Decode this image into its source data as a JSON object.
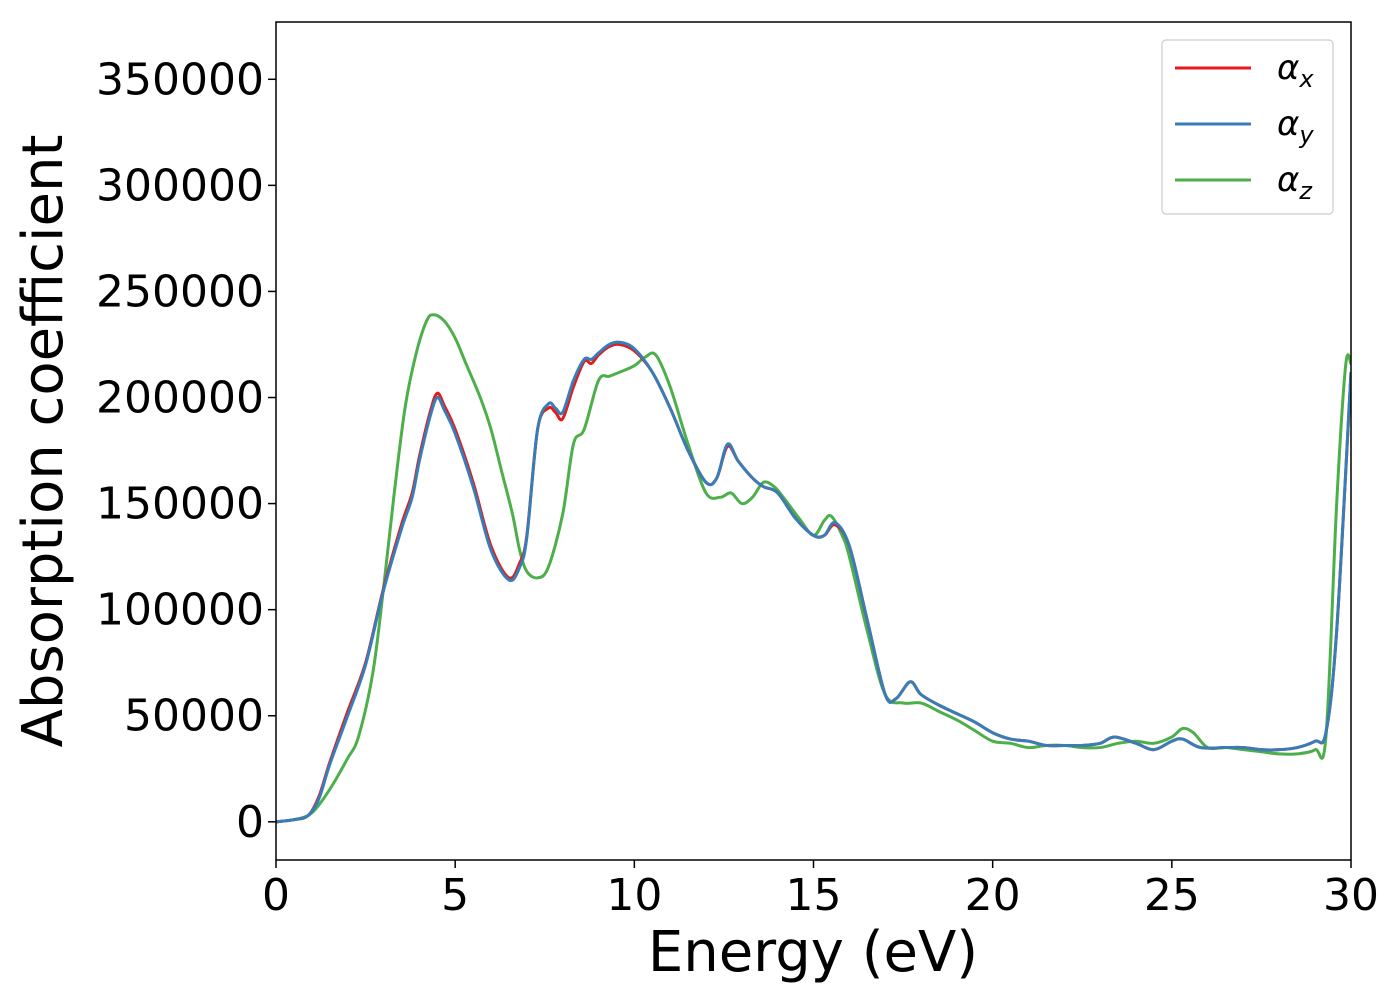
{
  "chart_data": {
    "type": "line",
    "title": "",
    "xlabel": "Energy (eV)",
    "ylabel": "Absorption coefficient",
    "xlim": [
      0,
      30
    ],
    "ylim": [
      -18000,
      377000
    ],
    "xticks": [
      0,
      5,
      10,
      15,
      20,
      25,
      30
    ],
    "yticks": [
      0,
      50000,
      100000,
      150000,
      200000,
      250000,
      300000,
      350000
    ],
    "grid": false,
    "legend_position": "top-right",
    "series": [
      {
        "name": "α_x",
        "legend_symbol": "α",
        "legend_subscript": "x",
        "color": "#e41a1c",
        "x": [
          0,
          0.5,
          0.9,
          1.2,
          1.5,
          2.0,
          2.5,
          3.0,
          3.5,
          3.8,
          4.0,
          4.3,
          4.5,
          4.7,
          5.0,
          5.5,
          6.0,
          6.5,
          6.8,
          7.0,
          7.3,
          7.6,
          7.8,
          8.0,
          8.3,
          8.6,
          8.8,
          9.0,
          9.3,
          9.6,
          10.0,
          10.5,
          11.0,
          11.5,
          12.0,
          12.3,
          12.6,
          12.9,
          13.3,
          13.6,
          14.0,
          14.5,
          15.0,
          15.3,
          15.6,
          16.0,
          16.5,
          17.0,
          17.3,
          17.7,
          18.0,
          18.5,
          19.0,
          19.5,
          20.0,
          20.5,
          21.0,
          21.5,
          22.0,
          22.5,
          23.0,
          23.4,
          24.0,
          24.5,
          25.0,
          25.3,
          25.8,
          26.5,
          27.0,
          27.5,
          28.0,
          28.5,
          29.0,
          29.3,
          29.6,
          30.0
        ],
        "y": [
          0,
          1000,
          3000,
          12000,
          28000,
          52000,
          75000,
          110000,
          140000,
          155000,
          172000,
          193000,
          202000,
          196000,
          185000,
          160000,
          130000,
          115000,
          122000,
          135000,
          185000,
          195000,
          193000,
          190000,
          205000,
          217000,
          216000,
          220000,
          224000,
          225000,
          222000,
          212000,
          195000,
          175000,
          160000,
          162000,
          177000,
          170000,
          162000,
          158000,
          155000,
          143000,
          135000,
          135000,
          140000,
          130000,
          95000,
          60000,
          58000,
          66000,
          60000,
          55000,
          51000,
          47000,
          42000,
          39000,
          38000,
          36000,
          36000,
          36000,
          37000,
          40000,
          37000,
          34000,
          38000,
          39000,
          35000,
          35000,
          35000,
          34000,
          34000,
          35000,
          38000,
          42000,
          90000,
          212000
        ]
      },
      {
        "name": "α_y",
        "legend_symbol": "α",
        "legend_subscript": "y",
        "color": "#377eb8",
        "x": [
          0,
          0.5,
          0.9,
          1.2,
          1.5,
          2.0,
          2.5,
          3.0,
          3.5,
          3.8,
          4.0,
          4.3,
          4.5,
          4.7,
          5.0,
          5.5,
          6.0,
          6.5,
          6.8,
          7.0,
          7.3,
          7.6,
          7.8,
          8.0,
          8.3,
          8.6,
          8.8,
          9.0,
          9.3,
          9.6,
          10.0,
          10.5,
          11.0,
          11.5,
          12.0,
          12.3,
          12.6,
          12.9,
          13.3,
          13.6,
          14.0,
          14.5,
          15.0,
          15.3,
          15.6,
          16.0,
          16.5,
          17.0,
          17.3,
          17.7,
          18.0,
          18.5,
          19.0,
          19.5,
          20.0,
          20.5,
          21.0,
          21.5,
          22.0,
          22.5,
          23.0,
          23.4,
          24.0,
          24.5,
          25.0,
          25.3,
          25.8,
          26.5,
          27.0,
          27.5,
          28.0,
          28.5,
          29.0,
          29.3,
          29.6,
          30.0
        ],
        "y": [
          0,
          1000,
          3000,
          11000,
          27000,
          50000,
          74000,
          109000,
          138000,
          153000,
          170000,
          191000,
          200000,
          194000,
          183000,
          158000,
          128000,
          114000,
          120000,
          134000,
          185000,
          197000,
          195000,
          193000,
          208000,
          218000,
          218000,
          221000,
          225000,
          226000,
          223000,
          212000,
          195000,
          175000,
          160000,
          162000,
          178000,
          170000,
          162000,
          158000,
          155000,
          143000,
          135000,
          135000,
          141000,
          130000,
          95000,
          60000,
          58000,
          66000,
          60000,
          55000,
          51000,
          47000,
          42000,
          39000,
          38000,
          36000,
          36000,
          36000,
          37000,
          40000,
          37000,
          34000,
          38000,
          39000,
          35000,
          35000,
          35000,
          34000,
          34000,
          35000,
          38000,
          42000,
          90000,
          212000
        ]
      },
      {
        "name": "α_z",
        "legend_symbol": "α",
        "legend_subscript": "z",
        "color": "#4daf4a",
        "x": [
          0,
          0.5,
          0.9,
          1.2,
          1.6,
          2.0,
          2.3,
          2.7,
          3.0,
          3.3,
          3.6,
          3.9,
          4.2,
          4.4,
          4.7,
          5.0,
          5.3,
          5.7,
          6.0,
          6.3,
          6.6,
          6.8,
          7.0,
          7.3,
          7.6,
          8.0,
          8.3,
          8.6,
          9.0,
          9.3,
          9.6,
          10.0,
          10.3,
          10.6,
          11.0,
          11.5,
          12.0,
          12.4,
          12.7,
          13.0,
          13.3,
          13.6,
          13.9,
          14.2,
          14.6,
          15.0,
          15.3,
          15.5,
          15.8,
          16.0,
          16.5,
          17.0,
          17.5,
          18.0,
          18.5,
          19.0,
          19.5,
          20.0,
          20.5,
          21.0,
          21.5,
          22.0,
          22.5,
          23.0,
          23.5,
          24.0,
          24.5,
          25.0,
          25.3,
          25.6,
          26.0,
          26.5,
          27.0,
          27.5,
          28.0,
          28.5,
          29.0,
          29.3,
          29.6,
          29.85,
          30.0
        ],
        "y": [
          0,
          1000,
          3000,
          8000,
          18000,
          30000,
          40000,
          70000,
          110000,
          155000,
          195000,
          220000,
          236000,
          239000,
          236000,
          228000,
          216000,
          200000,
          185000,
          165000,
          145000,
          128000,
          118000,
          115000,
          120000,
          145000,
          178000,
          185000,
          208000,
          210000,
          212000,
          215000,
          219000,
          220000,
          205000,
          178000,
          155000,
          153000,
          155000,
          150000,
          153000,
          160000,
          158000,
          152000,
          143000,
          135000,
          142000,
          144000,
          135000,
          125000,
          90000,
          60000,
          56000,
          56000,
          52000,
          48000,
          43000,
          38000,
          37000,
          35000,
          36000,
          36000,
          35000,
          35000,
          37000,
          38000,
          37000,
          40000,
          44000,
          42000,
          35000,
          35000,
          34000,
          33000,
          32000,
          32000,
          34000,
          40000,
          150000,
          215000,
          216000
        ]
      }
    ]
  }
}
